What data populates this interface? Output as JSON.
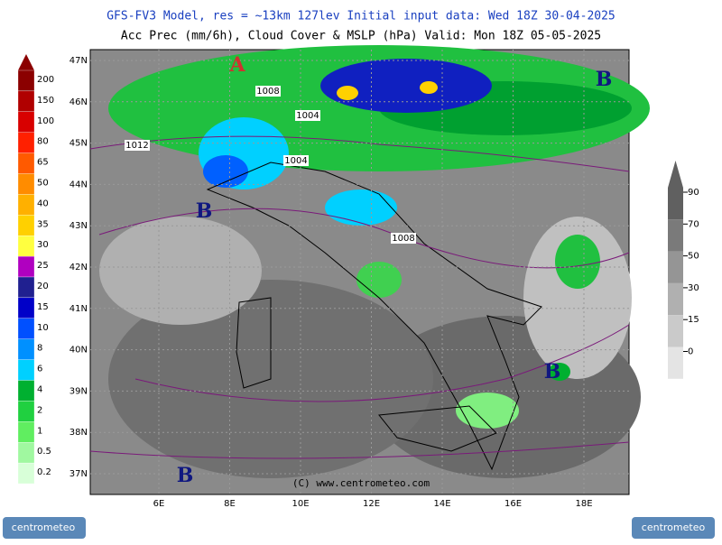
{
  "header": {
    "line1": "GFS-FV3 Model, res = ~13km 127lev   Initial input data: Wed 18Z 30-04-2025",
    "line2": "Acc Prec (mm/6h), Cloud Cover & MSLP (hPa)  Valid: Mon 18Z 05-05-2025"
  },
  "precip_legend": {
    "items": [
      {
        "label": "200",
        "color": "#8b0000"
      },
      {
        "label": "150",
        "color": "#b00000"
      },
      {
        "label": "100",
        "color": "#d80000"
      },
      {
        "label": "80",
        "color": "#ff2000"
      },
      {
        "label": "65",
        "color": "#ff5a00"
      },
      {
        "label": "50",
        "color": "#ff8c00"
      },
      {
        "label": "40",
        "color": "#ffb000"
      },
      {
        "label": "35",
        "color": "#ffd000"
      },
      {
        "label": "30",
        "color": "#ffff40"
      },
      {
        "label": "25",
        "color": "#b000c0"
      },
      {
        "label": "20",
        "color": "#202090"
      },
      {
        "label": "15",
        "color": "#0000c8"
      },
      {
        "label": "10",
        "color": "#0050ff"
      },
      {
        "label": "8",
        "color": "#0090ff"
      },
      {
        "label": "6",
        "color": "#00d0ff"
      },
      {
        "label": "4",
        "color": "#00b030"
      },
      {
        "label": "2",
        "color": "#20d040"
      },
      {
        "label": "1",
        "color": "#60ee60"
      },
      {
        "label": "0.5",
        "color": "#a0f8a0"
      },
      {
        "label": "0.2",
        "color": "#d8ffd8"
      }
    ]
  },
  "cloud_legend": {
    "items": [
      {
        "label": "90",
        "color": "#606060"
      },
      {
        "label": "70",
        "color": "#7a7a7a"
      },
      {
        "label": "50",
        "color": "#959595"
      },
      {
        "label": "30",
        "color": "#b0b0b0"
      },
      {
        "label": "15",
        "color": "#cacaca"
      },
      {
        "label": "0",
        "color": "#e4e4e4"
      }
    ]
  },
  "map": {
    "lat_labels": [
      "47N",
      "46N",
      "45N",
      "44N",
      "43N",
      "42N",
      "41N",
      "40N",
      "39N",
      "38N",
      "37N"
    ],
    "lon_labels": [
      "6E",
      "8E",
      "10E",
      "12E",
      "14E",
      "16E",
      "18E"
    ],
    "isobar_labels": [
      "1008",
      "1004",
      "1012",
      "1004",
      "1008"
    ],
    "pressure_centers": [
      "A",
      "B",
      "B",
      "B",
      "B"
    ]
  },
  "credit": "(C) www.centrometeo.com",
  "logos": [
    "centrometeo",
    "centrometeo"
  ]
}
